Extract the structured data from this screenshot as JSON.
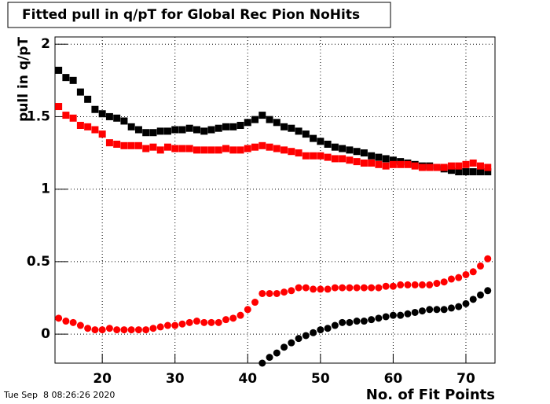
{
  "chart_data": {
    "type": "scatter",
    "title": "Fitted pull in q/pT for Global Rec Pion NoHits",
    "x_label": "No. of Fit Points",
    "y_label": "pull in q/pT",
    "timestamp": "Tue Sep  8 08:26:26 2020",
    "x": [
      14,
      15,
      16,
      17,
      18,
      19,
      20,
      21,
      22,
      23,
      24,
      25,
      26,
      27,
      28,
      29,
      30,
      31,
      32,
      33,
      34,
      35,
      36,
      37,
      38,
      39,
      40,
      41,
      42,
      43,
      44,
      45,
      46,
      47,
      48,
      49,
      50,
      51,
      52,
      53,
      54,
      55,
      56,
      57,
      58,
      59,
      60,
      61,
      62,
      63,
      64,
      65,
      66,
      67,
      68,
      69,
      70,
      71,
      72,
      73
    ],
    "series": [
      {
        "color": "#000000",
        "marker": "square",
        "values": [
          1.82,
          1.77,
          1.75,
          1.67,
          1.62,
          1.55,
          1.52,
          1.5,
          1.49,
          1.47,
          1.43,
          1.41,
          1.39,
          1.39,
          1.4,
          1.4,
          1.41,
          1.41,
          1.42,
          1.41,
          1.4,
          1.41,
          1.42,
          1.43,
          1.43,
          1.44,
          1.46,
          1.48,
          1.51,
          1.48,
          1.46,
          1.43,
          1.42,
          1.4,
          1.38,
          1.35,
          1.33,
          1.31,
          1.29,
          1.28,
          1.27,
          1.26,
          1.25,
          1.23,
          1.22,
          1.21,
          1.2,
          1.19,
          1.18,
          1.17,
          1.16,
          1.16,
          1.15,
          1.14,
          1.13,
          1.12,
          1.12,
          1.12,
          1.12,
          1.12
        ]
      },
      {
        "color": "#ff0000",
        "marker": "square",
        "values": [
          1.57,
          1.51,
          1.49,
          1.44,
          1.43,
          1.41,
          1.38,
          1.32,
          1.31,
          1.3,
          1.3,
          1.3,
          1.28,
          1.29,
          1.27,
          1.29,
          1.28,
          1.28,
          1.28,
          1.27,
          1.27,
          1.27,
          1.27,
          1.28,
          1.27,
          1.27,
          1.28,
          1.29,
          1.3,
          1.29,
          1.28,
          1.27,
          1.26,
          1.25,
          1.23,
          1.23,
          1.23,
          1.22,
          1.21,
          1.21,
          1.2,
          1.19,
          1.18,
          1.18,
          1.17,
          1.16,
          1.17,
          1.17,
          1.17,
          1.16,
          1.15,
          1.15,
          1.15,
          1.15,
          1.16,
          1.16,
          1.17,
          1.18,
          1.16,
          1.15
        ]
      },
      {
        "color": "#ff0000",
        "marker": "circle",
        "values": [
          0.11,
          0.09,
          0.08,
          0.06,
          0.04,
          0.03,
          0.03,
          0.04,
          0.03,
          0.03,
          0.03,
          0.03,
          0.03,
          0.04,
          0.05,
          0.06,
          0.06,
          0.07,
          0.08,
          0.09,
          0.08,
          0.08,
          0.08,
          0.1,
          0.11,
          0.13,
          0.17,
          0.22,
          0.28,
          0.28,
          0.28,
          0.29,
          0.3,
          0.32,
          0.32,
          0.31,
          0.31,
          0.31,
          0.32,
          0.32,
          0.32,
          0.32,
          0.32,
          0.32,
          0.32,
          0.33,
          0.33,
          0.34,
          0.34,
          0.34,
          0.34,
          0.34,
          0.35,
          0.36,
          0.38,
          0.39,
          0.41,
          0.43,
          0.47,
          0.52
        ]
      },
      {
        "color": "#000000",
        "marker": "circle",
        "values": [
          null,
          null,
          null,
          null,
          null,
          null,
          null,
          null,
          null,
          null,
          null,
          null,
          null,
          null,
          null,
          null,
          null,
          null,
          null,
          null,
          null,
          null,
          null,
          null,
          null,
          null,
          null,
          null,
          -0.2,
          -0.16,
          -0.13,
          -0.09,
          -0.06,
          -0.03,
          -0.01,
          0.01,
          0.03,
          0.04,
          0.06,
          0.08,
          0.08,
          0.09,
          0.09,
          0.1,
          0.11,
          0.12,
          0.13,
          0.13,
          0.14,
          0.15,
          0.16,
          0.17,
          0.17,
          0.17,
          0.18,
          0.19,
          0.21,
          0.24,
          0.27,
          0.3
        ]
      }
    ],
    "xlim": [
      13.5,
      74
    ],
    "ylim": [
      -0.2,
      2.05
    ],
    "xticks": [
      20,
      30,
      40,
      50,
      60,
      70
    ],
    "yticks": [
      0,
      0.5,
      1,
      1.5,
      2
    ],
    "grid": true
  }
}
